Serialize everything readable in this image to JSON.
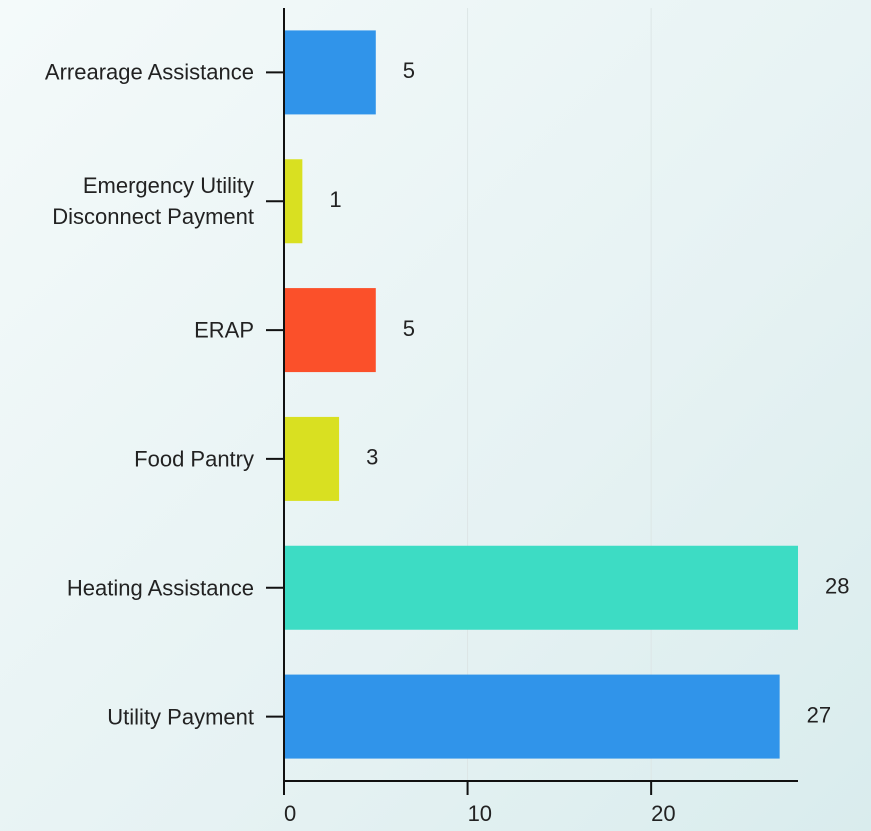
{
  "chart_data": {
    "type": "bar",
    "orientation": "horizontal",
    "categories": [
      "Arrearage Assistance",
      "Emergency Utility Disconnect Payment",
      "ERAP",
      "Food Pantry",
      "Heating Assistance",
      "Utility Payment"
    ],
    "values": [
      5,
      1,
      5,
      3,
      28,
      27
    ],
    "colors": [
      "#3094ea",
      "#d9e021",
      "#fb502a",
      "#d9e021",
      "#3ddcc4",
      "#3094ea"
    ],
    "xlim": [
      0,
      28
    ],
    "xticks": [
      0,
      10,
      20
    ],
    "grid": true
  }
}
